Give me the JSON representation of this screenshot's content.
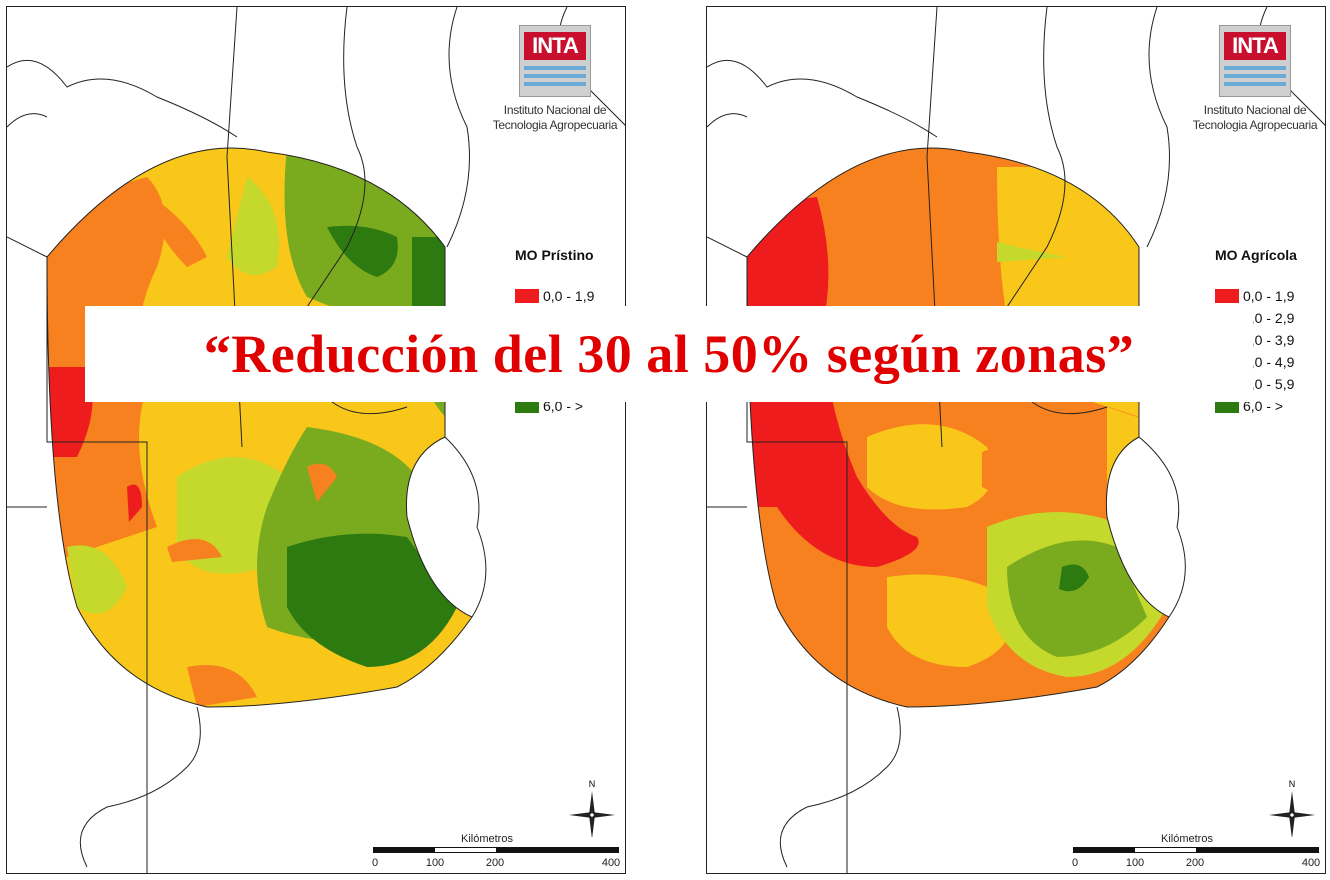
{
  "colors": {
    "class_0": "#ee1c1c",
    "class_1": "#f7811f",
    "class_2": "#f8c719",
    "class_3": "#c5d92c",
    "class_4": "#7aab1f",
    "class_5": "#2d7a10",
    "banner_text": "#e00000"
  },
  "legend_classes": [
    "0,0 - 1,9",
    "2,0 - 2,9",
    "3,0 - 3,9",
    "4,0 - 4,9",
    "5,0 - 5,9",
    "6,0 -  >"
  ],
  "logo": {
    "text": "INTA",
    "caption_line1": "Instituto Nacional de",
    "caption_line2": "Tecnologia Agropecuaria"
  },
  "maps": [
    {
      "legend_title": "MO Prístino",
      "scale_title": "Kilómetros",
      "scale_ticks": [
        "0",
        "100",
        "200",
        "400"
      ],
      "north_label": "N"
    },
    {
      "legend_title": "MO Agrícola",
      "scale_title": "Kilómetros",
      "scale_ticks": [
        "0",
        "100",
        "200",
        "400"
      ],
      "north_label": "N"
    }
  ],
  "banner": {
    "text": "“Reducción del 30 al 50% según zonas”"
  }
}
